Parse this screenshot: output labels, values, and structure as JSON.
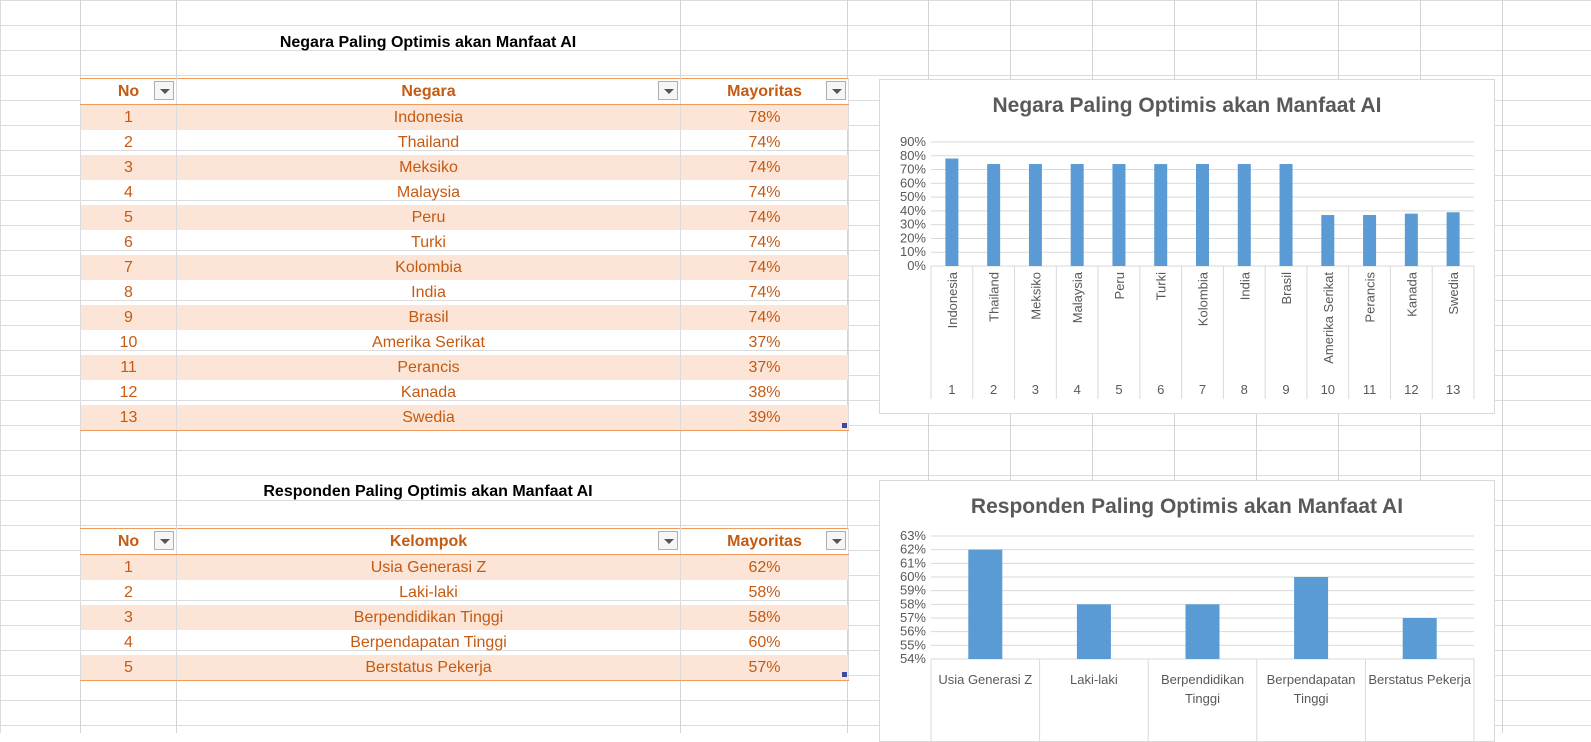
{
  "table1": {
    "title": "Negara Paling Optimis akan Manfaat AI",
    "headers": {
      "no": "No",
      "name": "Negara",
      "value": "Mayoritas"
    },
    "rows": [
      {
        "no": "1",
        "name": "Indonesia",
        "value": "78%"
      },
      {
        "no": "2",
        "name": "Thailand",
        "value": "74%"
      },
      {
        "no": "3",
        "name": "Meksiko",
        "value": "74%"
      },
      {
        "no": "4",
        "name": "Malaysia",
        "value": "74%"
      },
      {
        "no": "5",
        "name": "Peru",
        "value": "74%"
      },
      {
        "no": "6",
        "name": "Turki",
        "value": "74%"
      },
      {
        "no": "7",
        "name": "Kolombia",
        "value": "74%"
      },
      {
        "no": "8",
        "name": "India",
        "value": "74%"
      },
      {
        "no": "9",
        "name": "Brasil",
        "value": "74%"
      },
      {
        "no": "10",
        "name": "Amerika Serikat",
        "value": "37%"
      },
      {
        "no": "11",
        "name": "Perancis",
        "value": "37%"
      },
      {
        "no": "12",
        "name": "Kanada",
        "value": "38%"
      },
      {
        "no": "13",
        "name": "Swedia",
        "value": "39%"
      }
    ]
  },
  "table2": {
    "title": "Responden Paling Optimis akan Manfaat AI",
    "headers": {
      "no": "No",
      "name": "Kelompok",
      "value": "Mayoritas"
    },
    "rows": [
      {
        "no": "1",
        "name": "Usia Generasi Z",
        "value": "62%"
      },
      {
        "no": "2",
        "name": "Laki-laki",
        "value": "58%"
      },
      {
        "no": "3",
        "name": "Berpendidikan Tinggi",
        "value": "58%"
      },
      {
        "no": "4",
        "name": "Berpendapatan Tinggi",
        "value": "60%"
      },
      {
        "no": "5",
        "name": "Berstatus Pekerja",
        "value": "57%"
      }
    ]
  },
  "colors": {
    "bar": "#5b9bd5",
    "header_text": "#c55a11",
    "band": "#fce4d6"
  },
  "chart_data": [
    {
      "type": "bar",
      "title": "Negara Paling Optimis akan Manfaat AI",
      "categories": [
        "Indonesia",
        "Thailand",
        "Meksiko",
        "Malaysia",
        "Peru",
        "Turki",
        "Kolombia",
        "India",
        "Brasil",
        "Amerika Serikat",
        "Perancis",
        "Kanada",
        "Swedia"
      ],
      "category_numbers": [
        "1",
        "2",
        "3",
        "4",
        "5",
        "6",
        "7",
        "8",
        "9",
        "10",
        "11",
        "12",
        "13"
      ],
      "values": [
        78,
        74,
        74,
        74,
        74,
        74,
        74,
        74,
        74,
        37,
        37,
        38,
        39
      ],
      "yticks": [
        "0%",
        "10%",
        "20%",
        "30%",
        "40%",
        "50%",
        "60%",
        "70%",
        "80%",
        "90%"
      ],
      "ylim": [
        0,
        90
      ],
      "grid": true
    },
    {
      "type": "bar",
      "title": "Responden Paling Optimis akan Manfaat AI",
      "categories": [
        [
          "Usia Generasi Z"
        ],
        [
          "Laki-laki"
        ],
        [
          "Berpendidikan",
          "Tinggi"
        ],
        [
          "Berpendapatan",
          "Tinggi"
        ],
        [
          "Berstatus Pekerja"
        ]
      ],
      "values": [
        62,
        58,
        58,
        60,
        57
      ],
      "yticks": [
        "54%",
        "55%",
        "56%",
        "57%",
        "58%",
        "59%",
        "60%",
        "61%",
        "62%",
        "63%"
      ],
      "ylim": [
        54,
        63
      ],
      "grid": true
    }
  ]
}
